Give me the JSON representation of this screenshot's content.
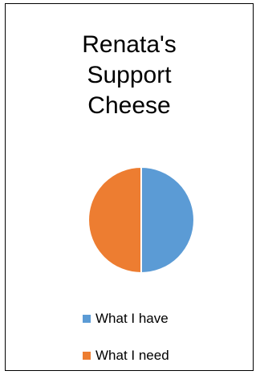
{
  "chart_data": {
    "type": "pie",
    "title_lines": [
      "Renata's",
      "Support",
      "Cheese"
    ],
    "categories": [
      "What I have",
      "What I need"
    ],
    "values": [
      50,
      50
    ],
    "colors": [
      "#5B9BD5",
      "#ED7D31"
    ],
    "legend_position": "bottom"
  }
}
